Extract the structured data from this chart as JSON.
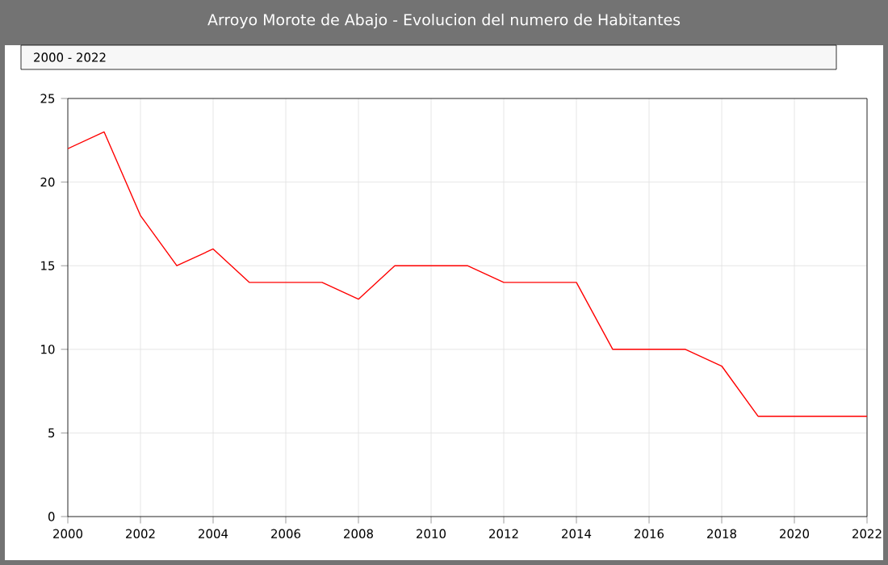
{
  "chart_data": {
    "type": "line",
    "title": "Arroyo Morote de Abajo - Evolucion del numero de Habitantes",
    "annotations": [
      "2000 - 2022"
    ],
    "x": [
      2000,
      2001,
      2002,
      2003,
      2004,
      2005,
      2006,
      2007,
      2008,
      2009,
      2010,
      2011,
      2012,
      2013,
      2014,
      2015,
      2016,
      2017,
      2018,
      2019,
      2020,
      2021,
      2022
    ],
    "series": [
      {
        "color": "#ff0000",
        "values": [
          22,
          23,
          18,
          15,
          16,
          14,
          14,
          14,
          13,
          15,
          15,
          15,
          14,
          14,
          14,
          10,
          10,
          10,
          9,
          6,
          6,
          6,
          6
        ]
      }
    ],
    "xlim": [
      2000,
      2022
    ],
    "xticks": [
      2000,
      2002,
      2004,
      2006,
      2008,
      2010,
      2012,
      2014,
      2016,
      2018,
      2020,
      2022
    ],
    "ylim": [
      0,
      25
    ],
    "yticks": [
      0,
      5,
      10,
      15,
      20,
      25
    ],
    "grid": true,
    "marker": "none",
    "line_style": "solid"
  }
}
